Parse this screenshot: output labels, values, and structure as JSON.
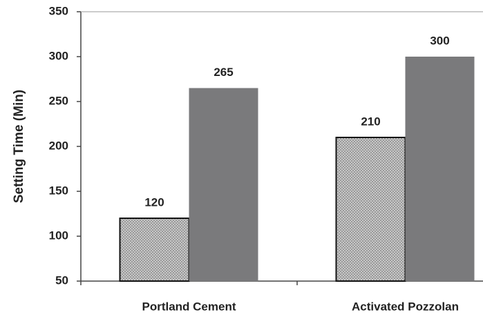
{
  "chart_data": {
    "type": "bar",
    "y_label": "Setting Time (Min)",
    "categories": [
      "Portland Cement",
      "Activated Pozzolan"
    ],
    "series": [
      {
        "color": "#c8c8c8",
        "values": [
          120,
          210
        ]
      },
      {
        "color": "#7a7a7c",
        "values": [
          265,
          300
        ]
      }
    ],
    "ylim": [
      50,
      350
    ],
    "yticks": [
      50,
      100,
      150,
      200,
      250,
      300,
      350
    ]
  }
}
